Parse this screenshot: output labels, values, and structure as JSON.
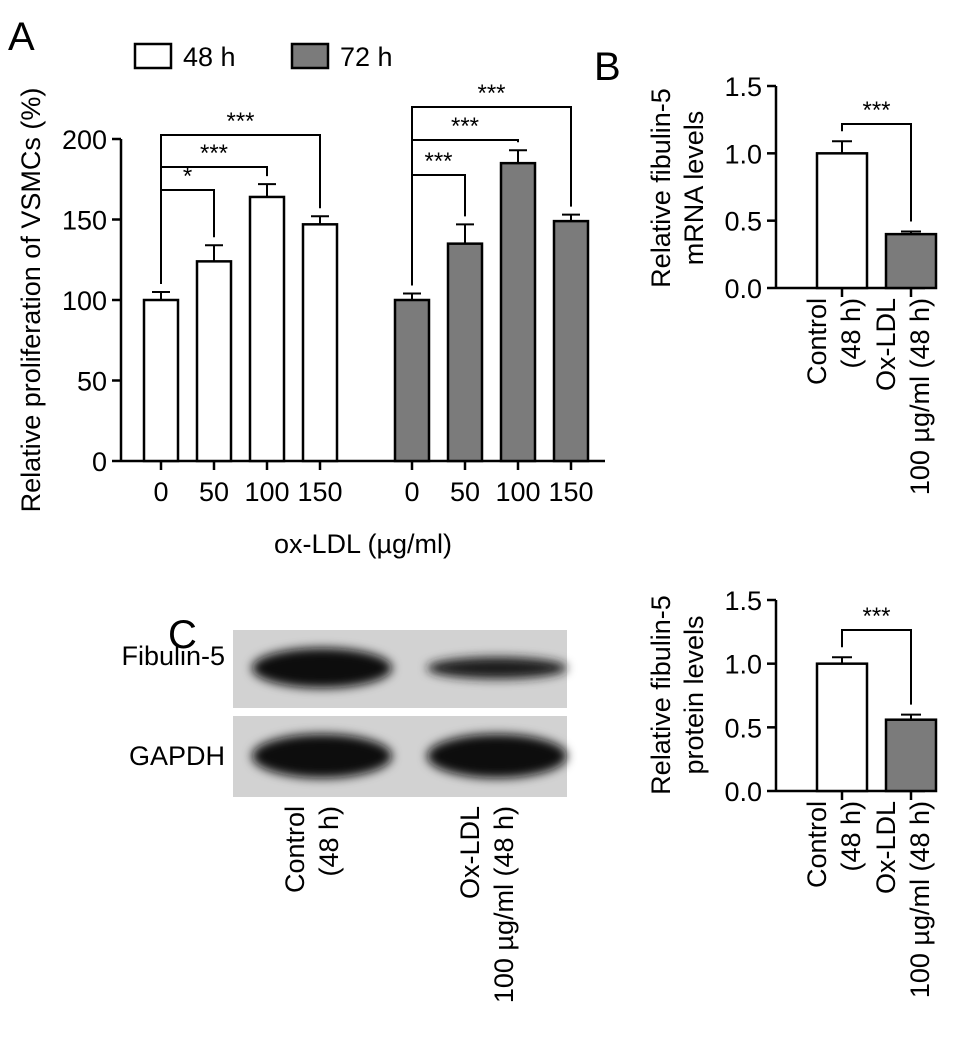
{
  "panels": {
    "A": "A",
    "B": "B",
    "C": "C"
  },
  "colors": {
    "bar_48h": "#ffffff",
    "bar_72h": "#7b7b7b",
    "axis": "#000000",
    "blot_bg": "#d2d2d2",
    "band": "#0e0e0e"
  },
  "blot": {
    "lanes": [
      "Control (48 h)",
      "Ox-LDL 100 µg/ml (48 h)"
    ],
    "rows": [
      {
        "label": "Fibulin-5",
        "band_intensity": [
          1.0,
          0.55
        ]
      },
      {
        "label": "GAPDH",
        "band_intensity": [
          1.0,
          1.0
        ]
      }
    ]
  },
  "chart_data": [
    {
      "panel": "A",
      "type": "bar",
      "categories": [
        "0",
        "50",
        "100",
        "150"
      ],
      "series": [
        {
          "name": "48 h",
          "values": [
            100,
            124,
            164,
            147
          ],
          "errors": [
            5,
            10,
            8,
            5
          ],
          "color": "#ffffff"
        },
        {
          "name": "72 h",
          "values": [
            100,
            135,
            185,
            149
          ],
          "errors": [
            4,
            12,
            8,
            4
          ],
          "color": "#7b7b7b"
        }
      ],
      "xlabel": "ox-LDL (µg/ml)",
      "ylabel": "Relative proliferation of VSMCs (%)",
      "ylim": [
        0,
        200
      ],
      "yticks": [
        "0",
        "50",
        "100",
        "150",
        "200"
      ],
      "legend_position": "top",
      "significance": [
        {
          "series": 0,
          "from": 0,
          "to": 1,
          "label": "*"
        },
        {
          "series": 0,
          "from": 0,
          "to": 2,
          "label": "***"
        },
        {
          "series": 0,
          "from": 0,
          "to": 3,
          "label": "***"
        },
        {
          "series": 1,
          "from": 0,
          "to": 1,
          "label": "***"
        },
        {
          "series": 1,
          "from": 0,
          "to": 2,
          "label": "***"
        },
        {
          "series": 1,
          "from": 0,
          "to": 3,
          "label": "***"
        }
      ]
    },
    {
      "panel": "B",
      "type": "bar",
      "categories": [
        "Control (48 h)",
        "Ox-LDL 100 µg/ml (48 h)"
      ],
      "values": [
        1.0,
        0.4
      ],
      "errors": [
        0.09,
        0.02
      ],
      "colors": [
        "#ffffff",
        "#7b7b7b"
      ],
      "ylabel": "Relative fibulin-5 mRNA levels",
      "ylim": [
        0,
        1.5
      ],
      "yticks": [
        "0.0",
        "0.5",
        "1.0",
        "1.5"
      ],
      "significance": [
        {
          "from": 0,
          "to": 1,
          "label": "***"
        }
      ]
    },
    {
      "panel": "C",
      "type": "bar",
      "categories": [
        "Control (48 h)",
        "Ox-LDL 100 µg/ml (48 h)"
      ],
      "values": [
        1.0,
        0.56
      ],
      "errors": [
        0.05,
        0.04
      ],
      "colors": [
        "#ffffff",
        "#7b7b7b"
      ],
      "ylabel": "Relative fibulin-5 protein levels",
      "ylim": [
        0,
        1.5
      ],
      "yticks": [
        "0.0",
        "0.5",
        "1.0",
        "1.5"
      ],
      "significance": [
        {
          "from": 0,
          "to": 1,
          "label": "***"
        }
      ]
    }
  ]
}
